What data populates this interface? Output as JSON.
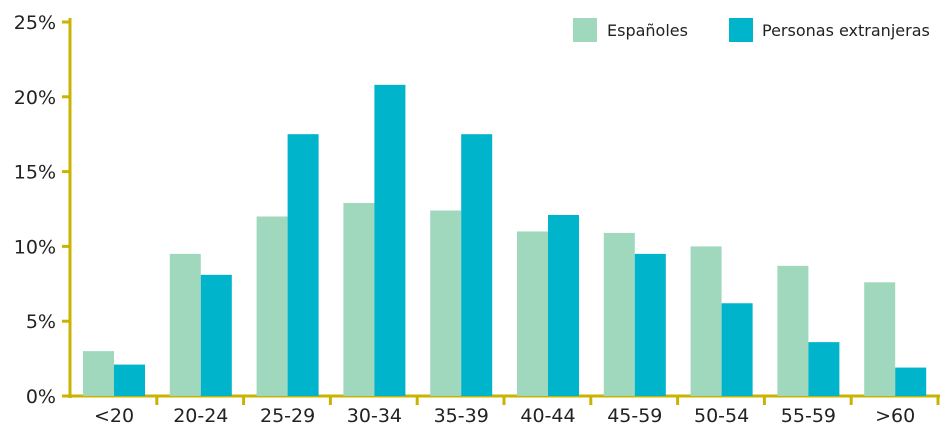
{
  "chart_data": {
    "type": "bar",
    "categories": [
      "<20",
      "20-24",
      "25-29",
      "30-34",
      "35-39",
      "40-44",
      "45-59",
      "50-54",
      "55-59",
      ">60"
    ],
    "series": [
      {
        "name": "Españoles",
        "color": "#a0d8bd",
        "values": [
          3.0,
          9.5,
          12.0,
          12.9,
          12.4,
          11.0,
          10.9,
          10.0,
          8.7,
          7.6
        ]
      },
      {
        "name": "Personas extranjeras",
        "color": "#00b4cc",
        "values": [
          2.1,
          8.1,
          17.5,
          20.8,
          17.5,
          12.1,
          9.5,
          6.2,
          3.6,
          1.9
        ]
      }
    ],
    "ylim": [
      0,
      25
    ],
    "yticks": [
      "0%",
      "5%",
      "10%",
      "15%",
      "20%",
      "25%"
    ],
    "ytick_values": [
      0,
      5,
      10,
      15,
      20,
      25
    ],
    "axis_color": "#c8b400",
    "legend_position": "top-right",
    "grid": false
  }
}
